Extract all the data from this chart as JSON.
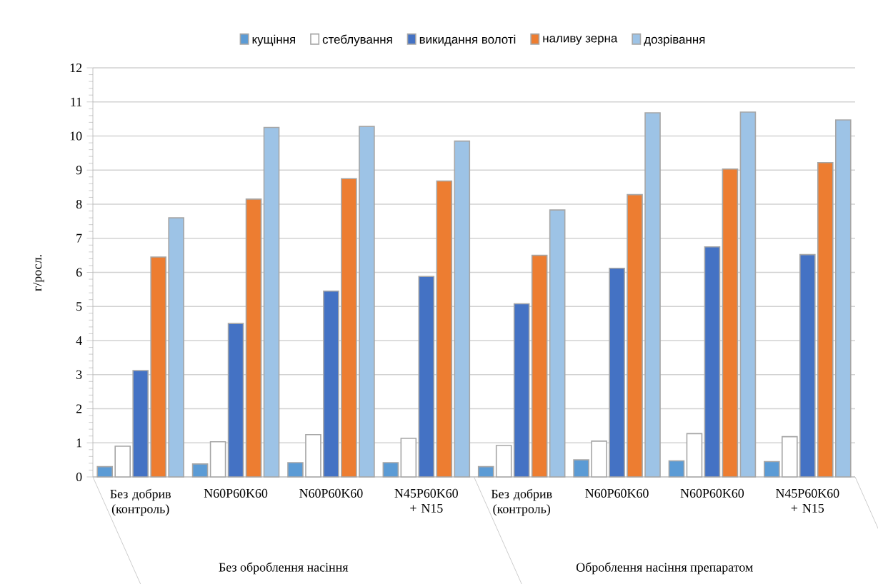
{
  "chart_data": {
    "type": "bar",
    "ylabel": "г/росл.",
    "categories": [
      "Без добрив (контроль)",
      "N60P60K60",
      "N60P60K60",
      "N45P60K60 + N15",
      "Без добрив (контроль)",
      "N60P60K60",
      "N60P60K60",
      "N45P60K60 + N15"
    ],
    "annotations": [
      "Без оброблення насіння",
      "Оброблення насіння препаратом"
    ],
    "series": [
      {
        "name": "кущіння",
        "color": "#5b9bd5",
        "values": [
          0.3,
          0.38,
          0.42,
          0.42,
          0.3,
          0.5,
          0.47,
          0.45
        ]
      },
      {
        "name": "стеблування",
        "color": "#ffffff",
        "values": [
          0.9,
          1.03,
          1.24,
          1.13,
          0.92,
          1.05,
          1.27,
          1.18
        ]
      },
      {
        "name": "викидання волоті",
        "color": "#4472c4",
        "values": [
          3.12,
          4.5,
          5.45,
          5.88,
          5.08,
          6.12,
          6.75,
          6.52
        ]
      },
      {
        "name": "наливу зерна",
        "color": "#ed7d31",
        "values": [
          6.45,
          8.15,
          8.75,
          8.68,
          6.5,
          8.28,
          9.03,
          9.22
        ]
      },
      {
        "name": "дозрівання",
        "color": "#9dc3e6",
        "values": [
          7.6,
          10.25,
          10.28,
          9.85,
          7.83,
          10.68,
          10.7,
          10.47
        ]
      }
    ],
    "ylim": [
      0,
      12
    ],
    "yticks": [
      0,
      1,
      2,
      3,
      4,
      5,
      6,
      7,
      8,
      9,
      10,
      11,
      12
    ],
    "grid": "y",
    "legend": "top"
  }
}
